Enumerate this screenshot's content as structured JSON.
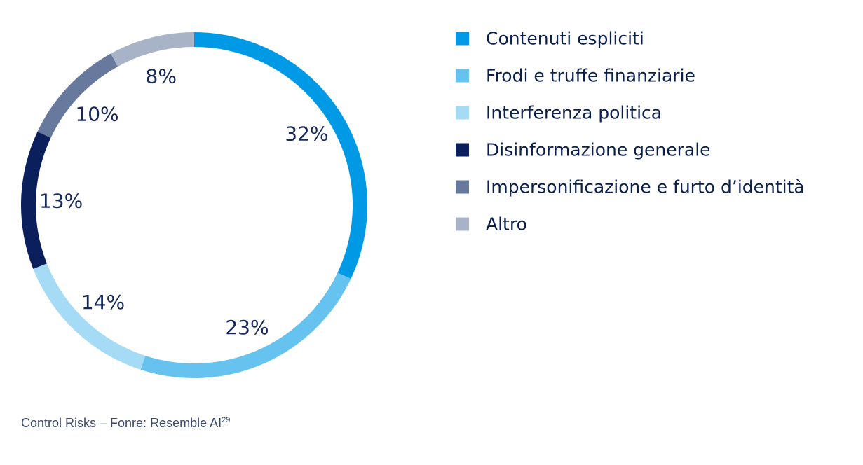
{
  "chart_data": {
    "type": "pie",
    "donut": true,
    "categories": [
      "Contenuti espliciti",
      "Frodi e truffe finanziarie",
      "Interferenza politica",
      "Disinformazione generale",
      "Impersonificazione e furto d’identità",
      "Altro"
    ],
    "values": [
      32,
      23,
      14,
      13,
      10,
      8
    ],
    "value_labels": [
      "32%",
      "23%",
      "14%",
      "13%",
      "10%",
      "8%"
    ],
    "colors": [
      "#0099e6",
      "#66c3ef",
      "#a6dbf6",
      "#0a1f5c",
      "#677a9e",
      "#a9b3c8"
    ],
    "legend_position": "right"
  },
  "source": {
    "text": "Control Risks – Fonre: Resemble AI",
    "footnote": "29"
  }
}
